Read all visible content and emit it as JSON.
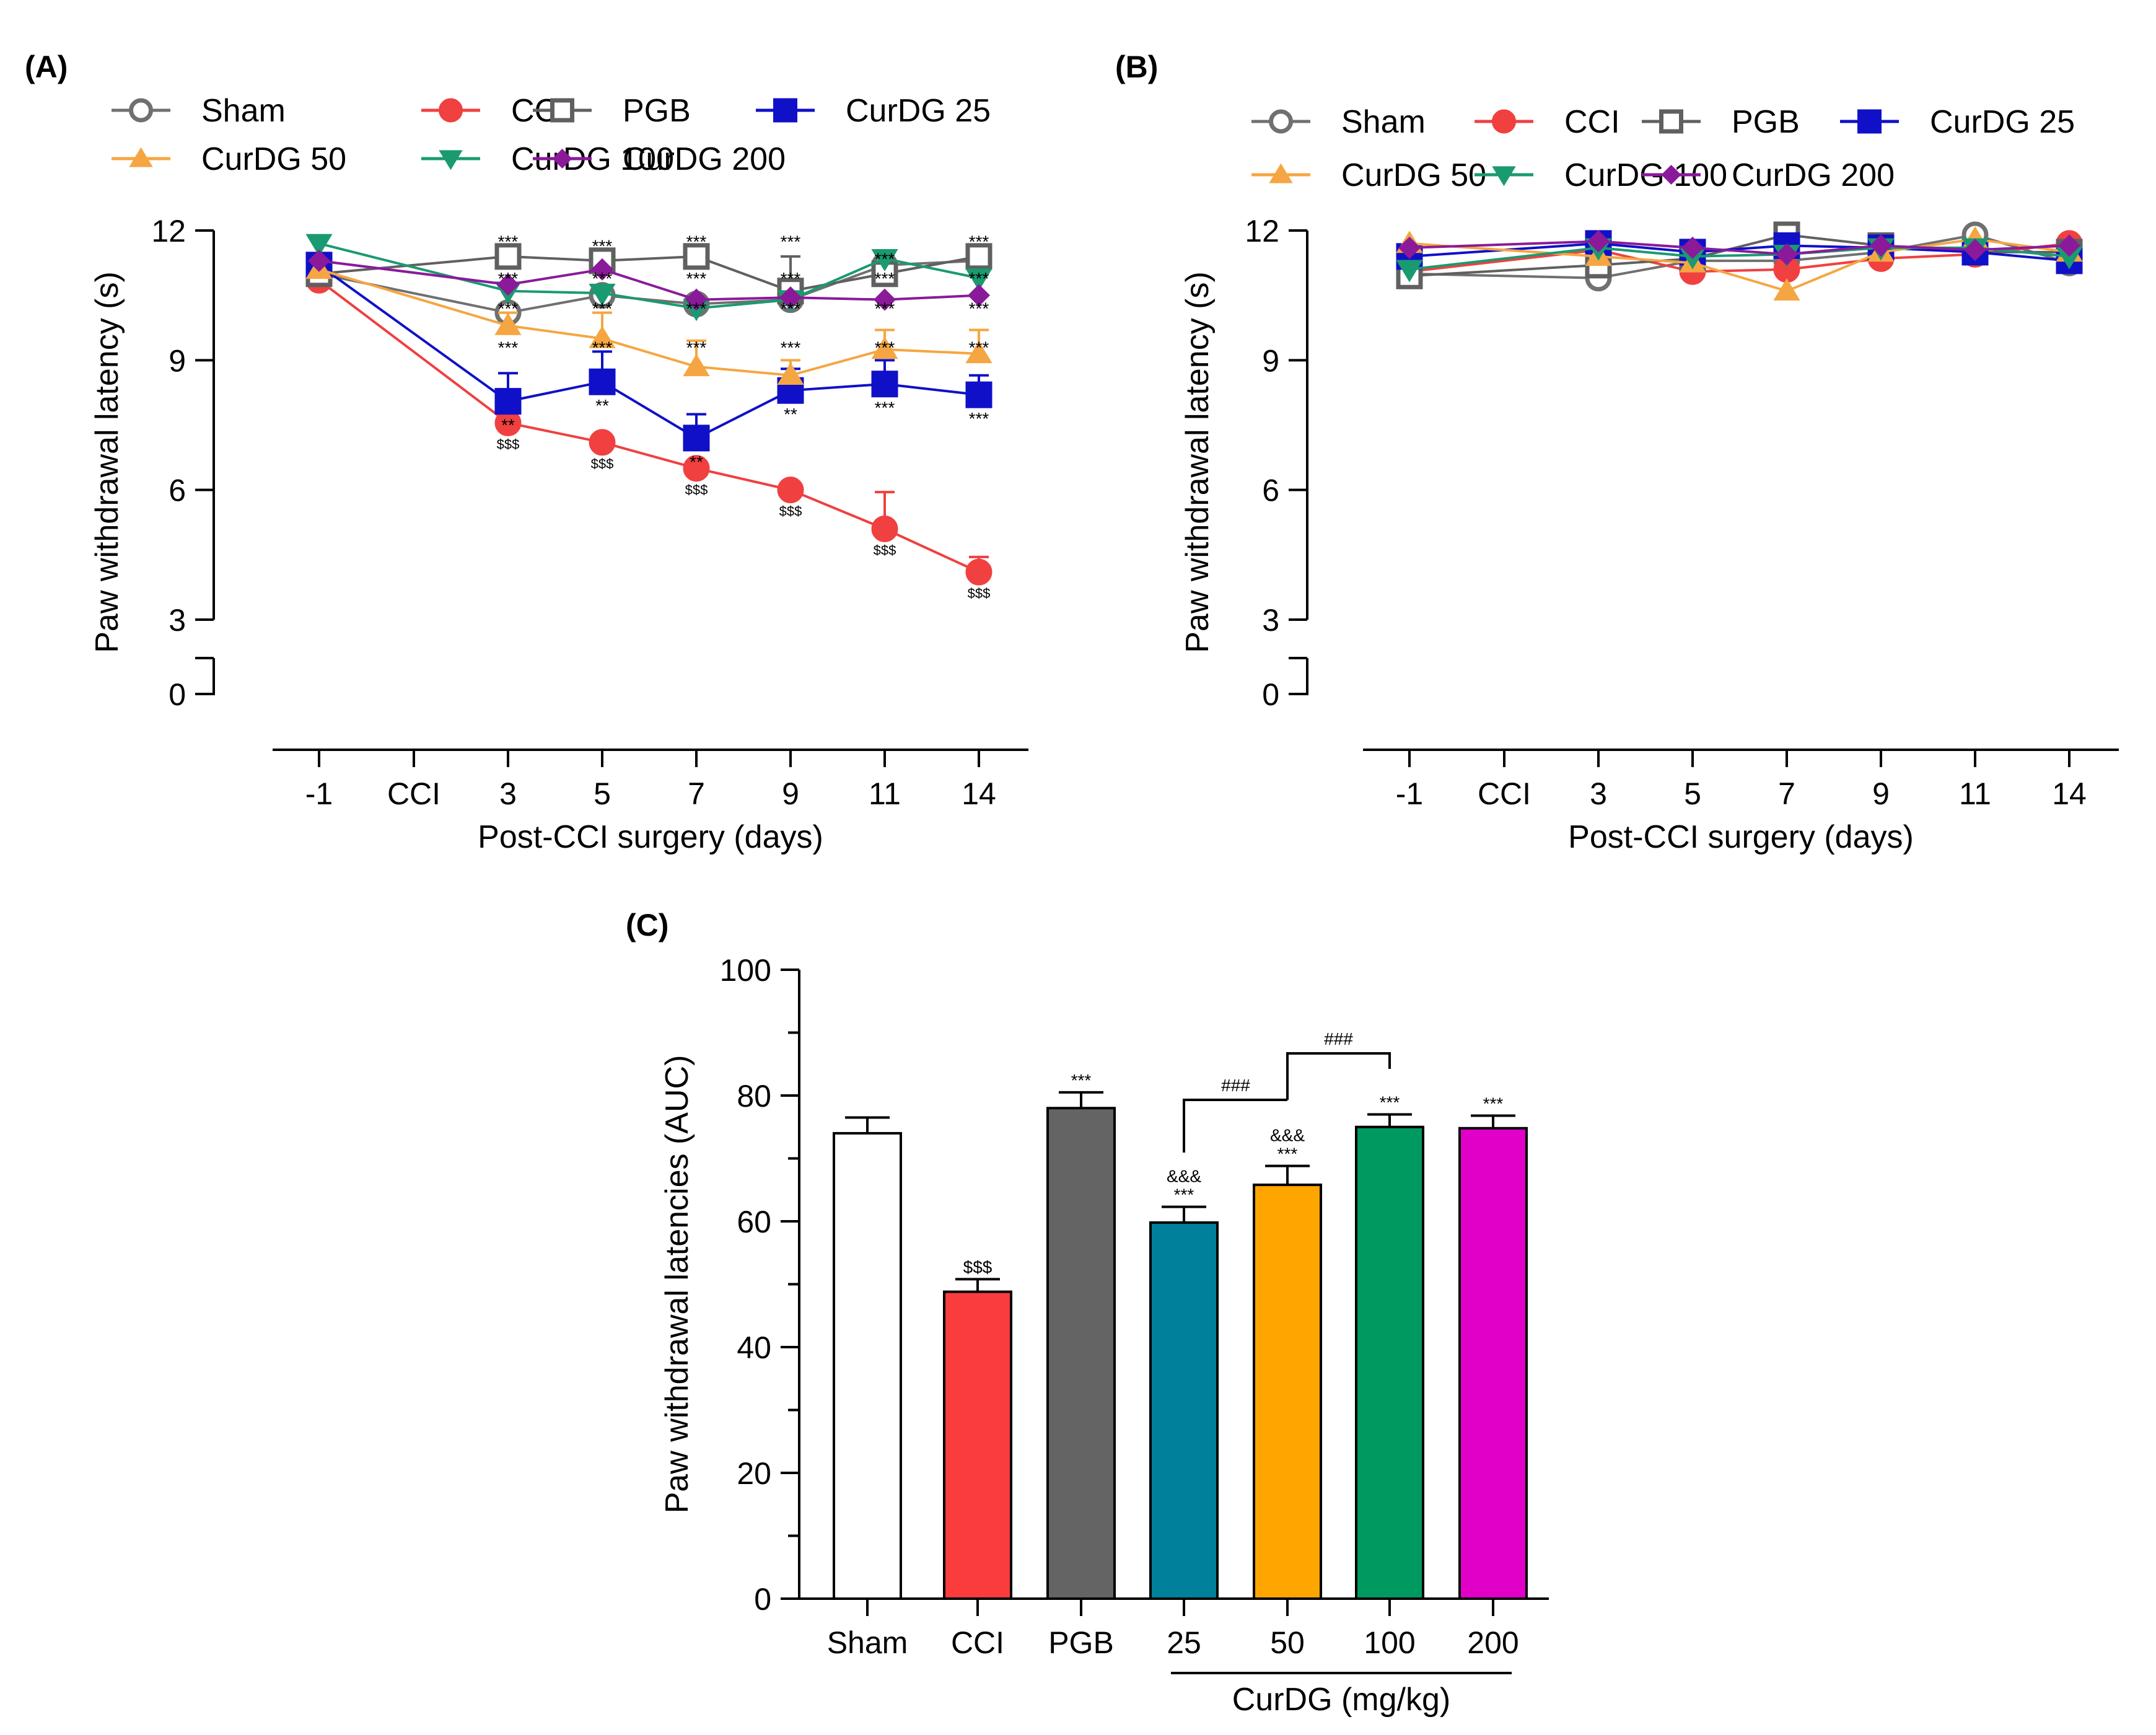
{
  "chart_data": [
    {
      "panel": "(A)",
      "type": "line",
      "xlabel": "Post-CCI surgery (days)",
      "ylabel": "Paw withdrawal latency (s)",
      "categories": [
        "-1",
        "CCI",
        "3",
        "5",
        "7",
        "9",
        "11",
        "14"
      ],
      "yticks": [
        "0",
        "3",
        "6",
        "9",
        "12"
      ],
      "ylim": [
        0,
        12
      ],
      "series": [
        {
          "name": "Sham",
          "color": "#707070",
          "marker": "circle-open",
          "values": [
            11.0,
            null,
            10.1,
            10.5,
            10.3,
            10.4,
            11.2,
            11.3
          ]
        },
        {
          "name": "CCI",
          "color": "#f04040",
          "marker": "circle",
          "values": [
            10.85,
            null,
            7.55,
            7.1,
            6.5,
            6.0,
            5.1,
            4.1
          ],
          "errors": [
            0,
            null,
            0,
            0,
            0,
            0,
            0.85,
            0.35
          ]
        },
        {
          "name": "PGB",
          "color": "#606060",
          "marker": "square-open",
          "values": [
            11.0,
            null,
            11.4,
            11.3,
            11.4,
            10.6,
            11.0,
            11.4
          ],
          "errors": [
            0,
            null,
            0,
            0,
            0,
            0.8,
            0,
            0
          ]
        },
        {
          "name": "CurDG 25",
          "color": "#1010c8",
          "marker": "square",
          "values": [
            11.2,
            null,
            8.05,
            8.5,
            7.2,
            8.3,
            8.45,
            8.2
          ],
          "errors": [
            0,
            null,
            0.65,
            0.7,
            0.55,
            0.5,
            0.55,
            0.45
          ]
        },
        {
          "name": "CurDG 50",
          "color": "#f5a642",
          "marker": "triangle",
          "values": [
            11.1,
            null,
            9.8,
            9.5,
            8.85,
            8.65,
            9.25,
            9.15
          ],
          "errors": [
            0,
            null,
            0.3,
            0.6,
            0.6,
            0.35,
            0.45,
            0.55
          ]
        },
        {
          "name": "CurDG 100",
          "color": "#1a9a70",
          "marker": "triangle-down",
          "values": [
            11.7,
            null,
            10.6,
            10.55,
            10.2,
            10.4,
            11.35,
            10.9
          ]
        },
        {
          "name": "CurDG 200",
          "color": "#8a1a9a",
          "marker": "diamond",
          "values": [
            11.3,
            null,
            10.75,
            11.1,
            10.4,
            10.45,
            10.4,
            10.5
          ]
        }
      ],
      "annotations": [
        {
          "x": "3",
          "labels": [
            "***",
            "***",
            "***",
            "***",
            "**"
          ],
          "cci": "$$$"
        },
        {
          "x": "5",
          "labels": [
            "***",
            "***",
            "***",
            "***",
            "**"
          ],
          "cci": "$$$"
        },
        {
          "x": "7",
          "labels": [
            "***",
            "***",
            "***",
            "***",
            "**"
          ],
          "cci": "$$$"
        },
        {
          "x": "9",
          "labels": [
            "***",
            "***",
            "***",
            "***",
            "**"
          ],
          "cci": "$$$"
        },
        {
          "x": "11",
          "labels": [
            "***",
            "***",
            "***",
            "***",
            "***"
          ],
          "cci": "$$$"
        },
        {
          "x": "14",
          "labels": [
            "***",
            "***",
            "***",
            "***",
            "***"
          ],
          "cci": "$$$"
        }
      ]
    },
    {
      "panel": "(B)",
      "type": "line",
      "xlabel": "Post-CCI surgery (days)",
      "ylabel": "Paw withdrawal latency (s)",
      "categories": [
        "-1",
        "CCI",
        "3",
        "5",
        "7",
        "9",
        "11",
        "14"
      ],
      "yticks": [
        "0",
        "3",
        "6",
        "9",
        "12"
      ],
      "ylim": [
        0,
        12
      ],
      "series": [
        {
          "name": "Sham",
          "color": "#707070",
          "marker": "circle-open",
          "values": [
            11.0,
            null,
            10.9,
            11.3,
            11.3,
            11.5,
            11.9,
            11.25
          ]
        },
        {
          "name": "CCI",
          "color": "#f04040",
          "marker": "circle",
          "values": [
            11.05,
            null,
            11.55,
            11.05,
            11.1,
            11.35,
            11.45,
            11.7
          ]
        },
        {
          "name": "PGB",
          "color": "#606060",
          "marker": "square-open",
          "values": [
            10.95,
            null,
            11.2,
            11.35,
            11.9,
            11.65,
            11.5,
            11.5
          ]
        },
        {
          "name": "CurDG 25",
          "color": "#1010c8",
          "marker": "square",
          "values": [
            11.4,
            null,
            11.7,
            11.5,
            11.65,
            11.6,
            11.5,
            11.3
          ]
        },
        {
          "name": "CurDG 50",
          "color": "#f5a642",
          "marker": "triangle",
          "values": [
            11.7,
            null,
            11.4,
            11.25,
            10.6,
            11.5,
            11.8,
            11.5
          ]
        },
        {
          "name": "CurDG 100",
          "color": "#1a9a70",
          "marker": "triangle-down",
          "values": [
            11.1,
            null,
            11.6,
            11.4,
            11.45,
            11.6,
            11.6,
            11.4
          ]
        },
        {
          "name": "CurDG 200",
          "color": "#8a1a9a",
          "marker": "diamond",
          "values": [
            11.6,
            null,
            11.75,
            11.6,
            11.45,
            11.65,
            11.55,
            11.65
          ]
        }
      ]
    },
    {
      "panel": "(C)",
      "type": "bar",
      "ylabel": "Paw withdrawal latencies (AUC)",
      "xlabel": "CurDG (mg/kg)",
      "ylim": [
        0,
        100
      ],
      "yticks": [
        "0",
        "20",
        "40",
        "60",
        "80",
        "100"
      ],
      "categories": [
        "Sham",
        "CCI",
        "PGB",
        "25",
        "50",
        "100",
        "200"
      ],
      "values": [
        74,
        48.8,
        78,
        59.8,
        65.8,
        75,
        74.8
      ],
      "errors": [
        2.5,
        2.0,
        2.5,
        2.5,
        3.0,
        2.0,
        2.0
      ],
      "colors": [
        "#ffffff",
        "#fa3c3c",
        "#646464",
        "#00809a",
        "#ffa500",
        "#009a60",
        "#e000c8"
      ],
      "bar_labels": [
        "",
        "$$$",
        "***",
        "***",
        "***",
        "***",
        "***"
      ],
      "bar_labels_extra": [
        "",
        "",
        "",
        "&&&",
        "&&&",
        "",
        ""
      ],
      "comparisons": [
        {
          "from": "25",
          "to": "50",
          "label": "###"
        },
        {
          "from": "50",
          "to": "100",
          "label": "###"
        }
      ]
    }
  ]
}
